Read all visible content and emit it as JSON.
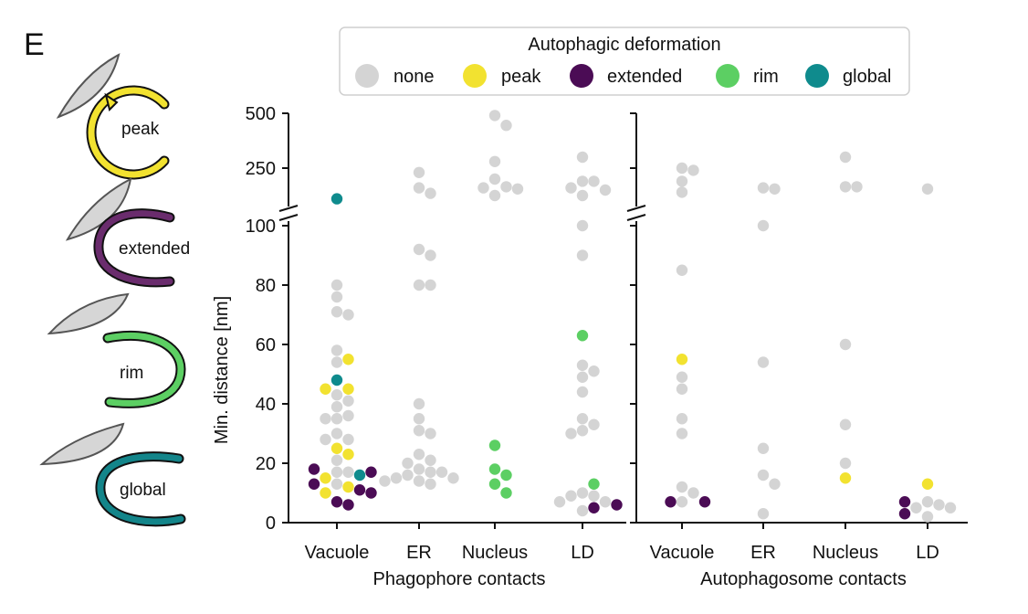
{
  "panel_letter": "E",
  "legend": {
    "title": "Autophagic deformation",
    "entries": [
      {
        "key": "none",
        "label": "none",
        "color": "#d4d4d4"
      },
      {
        "key": "peak",
        "label": "peak",
        "color": "#f2e230"
      },
      {
        "key": "extended",
        "label": "extended",
        "color": "#4b0c55"
      },
      {
        "key": "rim",
        "label": "rim",
        "color": "#5ccf63"
      },
      {
        "key": "global",
        "label": "global",
        "color": "#0f8b8d"
      }
    ]
  },
  "schematics": [
    {
      "label": "peak",
      "color": "#f2e230"
    },
    {
      "label": "extended",
      "color": "#6a2c6d"
    },
    {
      "label": "rim",
      "color": "#5ccf63"
    },
    {
      "label": "global",
      "color": "#13858a"
    }
  ],
  "chart_data": [
    {
      "type": "scatter",
      "title": "",
      "xlabel": "Phagophore contacts",
      "ylabel": "Min. distance [nm]",
      "categories": [
        "Vacuole",
        "ER",
        "Nucleus",
        "LD"
      ],
      "ylim_lower": [
        0,
        105
      ],
      "ylim_upper": [
        105,
        510
      ],
      "yticks_lower": [
        0,
        20,
        40,
        60,
        80,
        100
      ],
      "yticks_upper": [
        250,
        500
      ],
      "axis_break": true,
      "points": {
        "Vacuole": [
          {
            "y": 80,
            "class": "none"
          },
          {
            "y": 76,
            "class": "none"
          },
          {
            "y": 71,
            "class": "none"
          },
          {
            "y": 70,
            "class": "none"
          },
          {
            "y": 58,
            "class": "none"
          },
          {
            "y": 54,
            "class": "none"
          },
          {
            "y": 43,
            "class": "none"
          },
          {
            "y": 41,
            "class": "none"
          },
          {
            "y": 39,
            "class": "none"
          },
          {
            "y": 36,
            "class": "none"
          },
          {
            "y": 35,
            "class": "none"
          },
          {
            "y": 35,
            "class": "none"
          },
          {
            "y": 30,
            "class": "none"
          },
          {
            "y": 28,
            "class": "none"
          },
          {
            "y": 28,
            "class": "none"
          },
          {
            "y": 21,
            "class": "none"
          },
          {
            "y": 17,
            "class": "none"
          },
          {
            "y": 17,
            "class": "none"
          },
          {
            "y": 13,
            "class": "none"
          },
          {
            "y": 55,
            "class": "peak"
          },
          {
            "y": 45,
            "class": "peak"
          },
          {
            "y": 45,
            "class": "peak"
          },
          {
            "y": 25,
            "class": "peak"
          },
          {
            "y": 23,
            "class": "peak"
          },
          {
            "y": 15,
            "class": "peak"
          },
          {
            "y": 12,
            "class": "peak"
          },
          {
            "y": 10,
            "class": "peak"
          },
          {
            "y": 18,
            "class": "extended"
          },
          {
            "y": 17,
            "class": "extended"
          },
          {
            "y": 13,
            "class": "extended"
          },
          {
            "y": 11,
            "class": "extended"
          },
          {
            "y": 10,
            "class": "extended"
          },
          {
            "y": 7,
            "class": "extended"
          },
          {
            "y": 6,
            "class": "extended"
          },
          {
            "y": 110,
            "class": "global"
          },
          {
            "y": 48,
            "class": "global"
          },
          {
            "y": 16,
            "class": "global"
          }
        ],
        "ER": [
          {
            "y": 230,
            "class": "none"
          },
          {
            "y": 160,
            "class": "none"
          },
          {
            "y": 135,
            "class": "none"
          },
          {
            "y": 92,
            "class": "none"
          },
          {
            "y": 90,
            "class": "none"
          },
          {
            "y": 80,
            "class": "none"
          },
          {
            "y": 80,
            "class": "none"
          },
          {
            "y": 40,
            "class": "none"
          },
          {
            "y": 35,
            "class": "none"
          },
          {
            "y": 31,
            "class": "none"
          },
          {
            "y": 30,
            "class": "none"
          },
          {
            "y": 23,
            "class": "none"
          },
          {
            "y": 21,
            "class": "none"
          },
          {
            "y": 20,
            "class": "none"
          },
          {
            "y": 18,
            "class": "none"
          },
          {
            "y": 17,
            "class": "none"
          },
          {
            "y": 17,
            "class": "none"
          },
          {
            "y": 16,
            "class": "none"
          },
          {
            "y": 15,
            "class": "none"
          },
          {
            "y": 15,
            "class": "none"
          },
          {
            "y": 14,
            "class": "none"
          },
          {
            "y": 14,
            "class": "none"
          },
          {
            "y": 13,
            "class": "none"
          }
        ],
        "Nucleus": [
          {
            "y": 490,
            "class": "none"
          },
          {
            "y": 445,
            "class": "none"
          },
          {
            "y": 280,
            "class": "none"
          },
          {
            "y": 200,
            "class": "none"
          },
          {
            "y": 165,
            "class": "none"
          },
          {
            "y": 160,
            "class": "none"
          },
          {
            "y": 155,
            "class": "none"
          },
          {
            "y": 125,
            "class": "none"
          },
          {
            "y": 26,
            "class": "rim"
          },
          {
            "y": 18,
            "class": "rim"
          },
          {
            "y": 16,
            "class": "rim"
          },
          {
            "y": 13,
            "class": "rim"
          },
          {
            "y": 10,
            "class": "rim"
          }
        ],
        "LD": [
          {
            "y": 300,
            "class": "none"
          },
          {
            "y": 190,
            "class": "none"
          },
          {
            "y": 190,
            "class": "none"
          },
          {
            "y": 160,
            "class": "none"
          },
          {
            "y": 150,
            "class": "none"
          },
          {
            "y": 125,
            "class": "none"
          },
          {
            "y": 100,
            "class": "none"
          },
          {
            "y": 90,
            "class": "none"
          },
          {
            "y": 53,
            "class": "none"
          },
          {
            "y": 51,
            "class": "none"
          },
          {
            "y": 49,
            "class": "none"
          },
          {
            "y": 44,
            "class": "none"
          },
          {
            "y": 35,
            "class": "none"
          },
          {
            "y": 33,
            "class": "none"
          },
          {
            "y": 31,
            "class": "none"
          },
          {
            "y": 30,
            "class": "none"
          },
          {
            "y": 10,
            "class": "none"
          },
          {
            "y": 9,
            "class": "none"
          },
          {
            "y": 9,
            "class": "none"
          },
          {
            "y": 7,
            "class": "none"
          },
          {
            "y": 7,
            "class": "none"
          },
          {
            "y": 4,
            "class": "none"
          },
          {
            "y": 63,
            "class": "rim"
          },
          {
            "y": 13,
            "class": "rim"
          },
          {
            "y": 6,
            "class": "extended"
          },
          {
            "y": 5,
            "class": "extended"
          }
        ]
      }
    },
    {
      "type": "scatter",
      "title": "",
      "xlabel": "Autophagosome contacts",
      "ylabel": "",
      "categories": [
        "Vacuole",
        "ER",
        "Nucleus",
        "LD"
      ],
      "ylim_lower": [
        0,
        105
      ],
      "ylim_upper": [
        105,
        510
      ],
      "axis_break": true,
      "points": {
        "Vacuole": [
          {
            "y": 250,
            "class": "none"
          },
          {
            "y": 240,
            "class": "none"
          },
          {
            "y": 190,
            "class": "none"
          },
          {
            "y": 140,
            "class": "none"
          },
          {
            "y": 85,
            "class": "none"
          },
          {
            "y": 49,
            "class": "none"
          },
          {
            "y": 45,
            "class": "none"
          },
          {
            "y": 35,
            "class": "none"
          },
          {
            "y": 30,
            "class": "none"
          },
          {
            "y": 12,
            "class": "none"
          },
          {
            "y": 10,
            "class": "none"
          },
          {
            "y": 7,
            "class": "none"
          },
          {
            "y": 55,
            "class": "peak"
          },
          {
            "y": 7,
            "class": "extended"
          },
          {
            "y": 7,
            "class": "extended"
          }
        ],
        "ER": [
          {
            "y": 160,
            "class": "none"
          },
          {
            "y": 155,
            "class": "none"
          },
          {
            "y": 100,
            "class": "none"
          },
          {
            "y": 54,
            "class": "none"
          },
          {
            "y": 25,
            "class": "none"
          },
          {
            "y": 16,
            "class": "none"
          },
          {
            "y": 13,
            "class": "none"
          },
          {
            "y": 3,
            "class": "none"
          }
        ],
        "Nucleus": [
          {
            "y": 300,
            "class": "none"
          },
          {
            "y": 165,
            "class": "none"
          },
          {
            "y": 165,
            "class": "none"
          },
          {
            "y": 60,
            "class": "none"
          },
          {
            "y": 33,
            "class": "none"
          },
          {
            "y": 20,
            "class": "none"
          },
          {
            "y": 15,
            "class": "peak"
          }
        ],
        "LD": [
          {
            "y": 155,
            "class": "none"
          },
          {
            "y": 7,
            "class": "none"
          },
          {
            "y": 6,
            "class": "none"
          },
          {
            "y": 5,
            "class": "none"
          },
          {
            "y": 5,
            "class": "none"
          },
          {
            "y": 2,
            "class": "none"
          },
          {
            "y": 13,
            "class": "peak"
          },
          {
            "y": 7,
            "class": "extended"
          },
          {
            "y": 3,
            "class": "extended"
          }
        ]
      }
    }
  ]
}
